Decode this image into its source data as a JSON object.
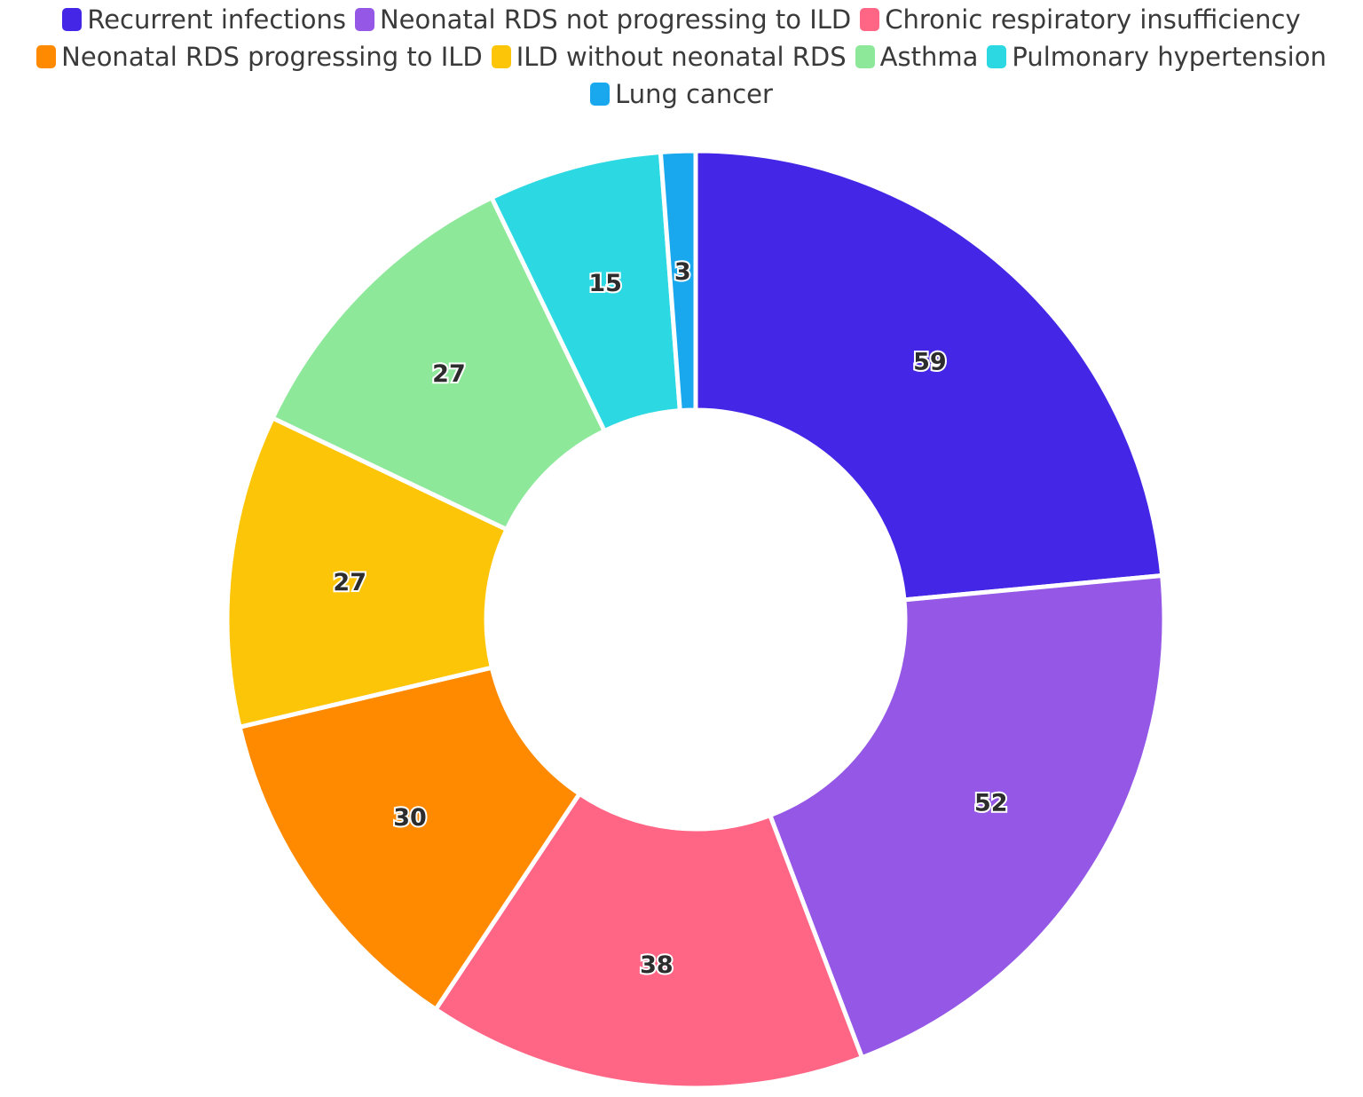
{
  "chart_data": {
    "type": "pie",
    "subtype": "donut",
    "legend_position": "top",
    "series": [
      {
        "name": "Recurrent infections",
        "value": 59,
        "color": "#4427E6"
      },
      {
        "name": "Neonatal RDS not progressing to ILD",
        "value": 52,
        "color": "#9457E6"
      },
      {
        "name": "Chronic respiratory insufficiency",
        "value": 38,
        "color": "#FF6584"
      },
      {
        "name": "Neonatal RDS progressing to ILD",
        "value": 30,
        "color": "#FF8A00"
      },
      {
        "name": "ILD without neonatal RDS",
        "value": 27,
        "color": "#FDC508"
      },
      {
        "name": "Asthma",
        "value": 27,
        "color": "#8EE89A"
      },
      {
        "name": "Pulmonary hypertension",
        "value": 15,
        "color": "#2CD9E3"
      },
      {
        "name": "Lung cancer",
        "value": 3,
        "color": "#19A8EE"
      }
    ]
  }
}
